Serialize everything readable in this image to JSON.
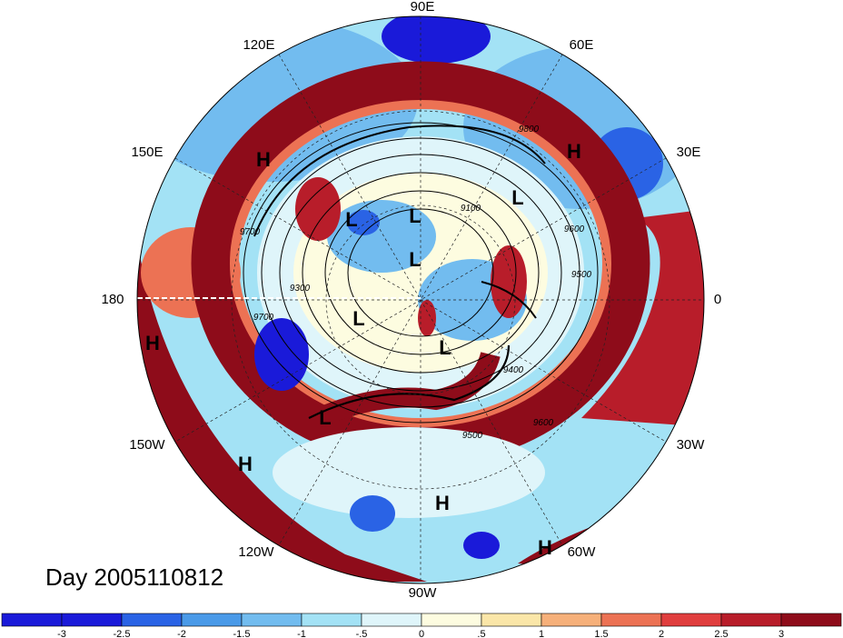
{
  "title": "Day 2005110812",
  "longitude_labels": [
    "90E",
    "60E",
    "30E",
    "0",
    "30W",
    "60W",
    "90W",
    "120W",
    "150W",
    "180",
    "150E",
    "120E"
  ],
  "pressure_systems": [
    {
      "type": "H"
    },
    {
      "type": "H"
    },
    {
      "type": "H"
    },
    {
      "type": "H"
    },
    {
      "type": "H"
    },
    {
      "type": "H"
    },
    {
      "type": "L"
    },
    {
      "type": "L"
    },
    {
      "type": "L"
    },
    {
      "type": "L"
    },
    {
      "type": "L"
    },
    {
      "type": "L"
    },
    {
      "type": "L"
    }
  ],
  "contour_labels": [
    "9100",
    "9300",
    "9400",
    "9500",
    "9500",
    "9600",
    "9600",
    "9700",
    "9700",
    "9800"
  ],
  "colorbar": {
    "ticks": [
      "-3",
      "-2.5",
      "-2",
      "-1.5",
      "-1",
      "-.5",
      "0",
      ".5",
      "1",
      "1.5",
      "2",
      "2.5",
      "3"
    ],
    "colors": [
      "#1a1ad9",
      "#2a63e5",
      "#4a9ae8",
      "#72bcef",
      "#a3e2f5",
      "#dff5fa",
      "#fdfce0",
      "#fae6a8",
      "#f6b07a",
      "#ec7254",
      "#e03e3e",
      "#b81d2a",
      "#8e0c1a"
    ]
  }
}
